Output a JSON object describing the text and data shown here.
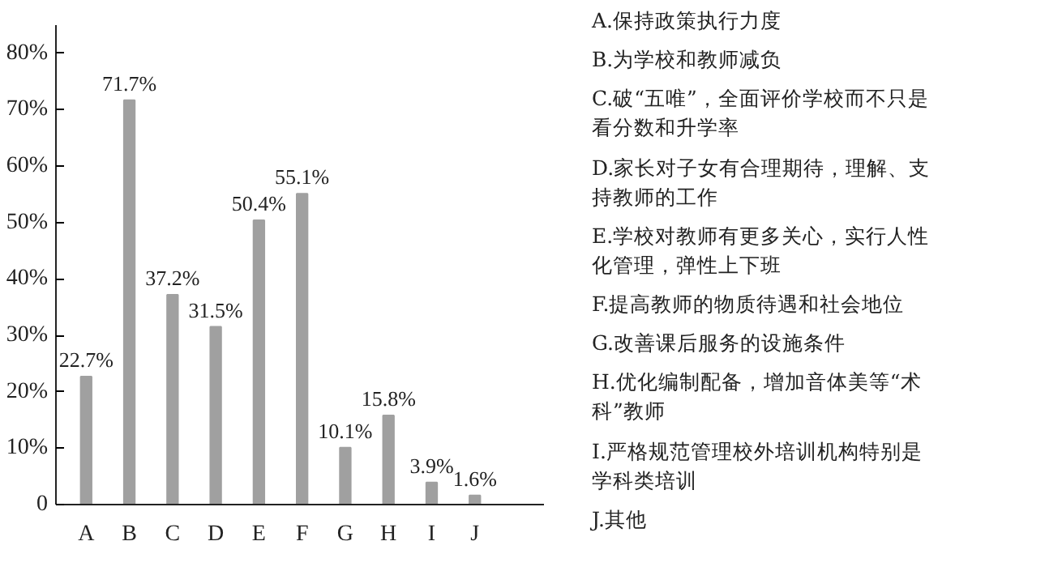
{
  "chart_data": {
    "type": "bar",
    "categories": [
      "A",
      "B",
      "C",
      "D",
      "E",
      "F",
      "G",
      "H",
      "I",
      "J"
    ],
    "values": [
      22.7,
      71.7,
      37.2,
      31.5,
      50.4,
      55.1,
      10.1,
      15.8,
      3.9,
      1.6
    ],
    "value_labels": [
      "22.7%",
      "71.7%",
      "37.2%",
      "31.5%",
      "50.4%",
      "55.1%",
      "10.1%",
      "15.8%",
      "3.9%",
      "1.6%"
    ],
    "color": "#a0a0a0",
    "ylim": [
      0,
      85
    ],
    "yticks": [
      0,
      {
        "value": 10,
        "label": "10%"
      },
      {
        "value": 20,
        "label": "20%"
      },
      {
        "value": 30,
        "label": "30%"
      },
      {
        "value": 40,
        "label": "40%"
      },
      {
        "value": 50,
        "label": "50%"
      },
      {
        "value": 60,
        "label": "60%"
      },
      {
        "value": 70,
        "label": "70%"
      },
      {
        "value": 80,
        "label": "80%"
      }
    ],
    "grid": false,
    "annotations": [
      "A.保持政策执行力度",
      "B.为学校和教师减负",
      "C.破“五唯”，全面评价学校而不只是看分数和升学率",
      "D.家长对子女有合理期待，理解、支持教师的工作",
      "E.学校对教师有更多关心，实行人性化管理，弹性上下班",
      "F.提高教师的物质待遇和社会地位",
      "G.改善课后服务的设施条件",
      "H.优化编制配备，增加音体美等“术科”教师",
      "I.严格规范管理校外培训机构特别是学科类培训",
      "J.其他"
    ]
  }
}
